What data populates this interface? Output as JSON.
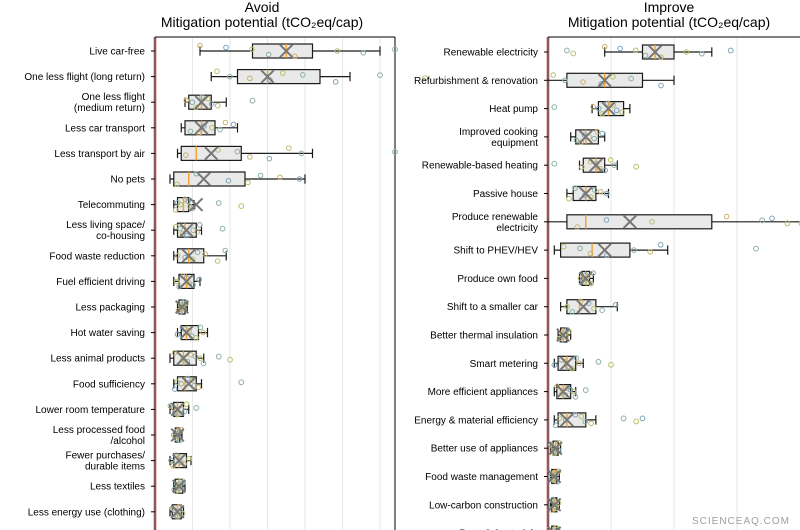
{
  "chart_data": [
    {
      "type": "boxplot",
      "title": "Avoid",
      "subtitle": "Mitigation potential (tCO₂eq/cap)",
      "categories": [
        [
          "Live car-free"
        ],
        [
          "One less flight (long return)"
        ],
        [
          "One less flight",
          "(medium return)"
        ],
        [
          "Less car transport"
        ],
        [
          "Less transport by air"
        ],
        [
          "No pets"
        ],
        [
          "Telecommuting"
        ],
        [
          "Less living space/",
          "co-housing"
        ],
        [
          "Food waste reduction"
        ],
        [
          "Fuel efficient driving"
        ],
        [
          "Less packaging"
        ],
        [
          "Hot water saving"
        ],
        [
          "Less animal products"
        ],
        [
          "Food sufficiency"
        ],
        [
          "Lower room temperature"
        ],
        [
          "Less processed food",
          "/alcohol"
        ],
        [
          "Fewer purchases/",
          "durable items"
        ],
        [
          "Less textiles"
        ],
        [
          "Less energy use (clothing)"
        ]
      ],
      "boxes": [
        {
          "wl": 0.6,
          "q1": 1.3,
          "med": 1.75,
          "q3": 2.1,
          "wh": 3.0,
          "mean": 1.75,
          "outliers": [
            3.2
          ]
        },
        {
          "wl": 0.75,
          "q1": 1.1,
          "med": 1.5,
          "q3": 2.2,
          "wh": 2.6,
          "mean": 1.5,
          "outliers": [
            3.0,
            3.6
          ]
        },
        {
          "wl": 0.4,
          "q1": 0.45,
          "med": 0.62,
          "q3": 0.75,
          "wh": 0.95,
          "mean": 0.62,
          "outliers": [
            1.3
          ]
        },
        {
          "wl": 0.35,
          "q1": 0.4,
          "med": 0.62,
          "q3": 0.8,
          "wh": 1.1,
          "mean": 0.62,
          "outliers": []
        },
        {
          "wl": 0.3,
          "q1": 0.35,
          "med": 0.55,
          "q3": 1.15,
          "wh": 2.1,
          "mean": 0.75,
          "outliers": [
            3.2
          ]
        },
        {
          "wl": 0.2,
          "q1": 0.25,
          "med": 0.45,
          "q3": 1.2,
          "wh": 2.0,
          "mean": 0.65,
          "outliers": []
        },
        {
          "wl": 0.25,
          "q1": 0.3,
          "med": 0.38,
          "q3": 0.45,
          "wh": 0.52,
          "mean": 0.55,
          "outliers": [
            0.85,
            1.15
          ]
        },
        {
          "wl": 0.25,
          "q1": 0.3,
          "med": 0.4,
          "q3": 0.55,
          "wh": 0.62,
          "mean": 0.42,
          "outliers": [
            0.9
          ]
        },
        {
          "wl": 0.25,
          "q1": 0.3,
          "med": 0.45,
          "q3": 0.65,
          "wh": 0.95,
          "mean": 0.45,
          "outliers": []
        },
        {
          "wl": 0.25,
          "q1": 0.32,
          "med": 0.42,
          "q3": 0.52,
          "wh": 0.6,
          "mean": 0.42,
          "outliers": []
        },
        {
          "wl": 0.3,
          "q1": 0.32,
          "med": 0.36,
          "q3": 0.4,
          "wh": 0.43,
          "mean": 0.36,
          "outliers": []
        },
        {
          "wl": 0.3,
          "q1": 0.35,
          "med": 0.42,
          "q3": 0.58,
          "wh": 0.7,
          "mean": 0.42,
          "outliers": []
        },
        {
          "wl": 0.2,
          "q1": 0.25,
          "med": 0.38,
          "q3": 0.55,
          "wh": 0.65,
          "mean": 0.38,
          "outliers": [
            0.85,
            1.0
          ]
        },
        {
          "wl": 0.25,
          "q1": 0.3,
          "med": 0.4,
          "q3": 0.55,
          "wh": 0.62,
          "mean": 0.45,
          "outliers": [
            1.15
          ]
        },
        {
          "wl": 0.2,
          "q1": 0.25,
          "med": 0.3,
          "q3": 0.38,
          "wh": 0.45,
          "mean": 0.3,
          "outliers": [
            0.55
          ]
        },
        {
          "wl": 0.25,
          "q1": 0.27,
          "med": 0.3,
          "q3": 0.33,
          "wh": 0.36,
          "mean": 0.3,
          "outliers": []
        },
        {
          "wl": 0.2,
          "q1": 0.25,
          "med": 0.32,
          "q3": 0.42,
          "wh": 0.48,
          "mean": 0.32,
          "outliers": []
        },
        {
          "wl": 0.25,
          "q1": 0.27,
          "med": 0.32,
          "q3": 0.37,
          "wh": 0.4,
          "mean": 0.32,
          "outliers": []
        },
        {
          "wl": 0.2,
          "q1": 0.23,
          "med": 0.3,
          "q3": 0.35,
          "wh": 0.38,
          "mean": 0.3,
          "outliers": []
        }
      ],
      "grid": true,
      "gridlines_every": 0.5
    },
    {
      "type": "boxplot",
      "title": "Improve",
      "subtitle": "Mitigation potential (tCO₂eq/cap)",
      "categories": [
        [
          "Renewable electricity"
        ],
        [
          "Refurbishment & renovation"
        ],
        [
          "Heat pump"
        ],
        [
          "Improved cooking",
          "equipment"
        ],
        [
          "Renewable-based heating"
        ],
        [
          "Passive house"
        ],
        [
          "Produce renewable",
          "electricity"
        ],
        [
          "Shift to PHEV/HEV"
        ],
        [
          "Produce own food"
        ],
        [
          "Shift to a smaller car"
        ],
        [
          "Better thermal insulation"
        ],
        [
          "Smart metering"
        ],
        [
          "More efficient appliances"
        ],
        [
          "Energy & material efficiency"
        ],
        [
          "Better use of appliances"
        ],
        [
          "Food waste management"
        ],
        [
          "Low-carbon construction"
        ],
        [
          "Recycle/materials"
        ]
      ],
      "boxes": [
        {
          "wl": 0.45,
          "q1": 0.75,
          "med": 0.85,
          "q3": 1.0,
          "wh": 1.3,
          "mean": 0.85,
          "outliers": [
            0.15,
            0.2,
            1.45
          ]
        },
        {
          "wl": 0.0,
          "q1": 0.15,
          "med": 0.45,
          "q3": 0.75,
          "wh": 1.0,
          "mean": 0.45,
          "outliers": []
        },
        {
          "wl": 0.35,
          "q1": 0.4,
          "med": 0.48,
          "q3": 0.6,
          "wh": 0.65,
          "mean": 0.48,
          "outliers": [
            0.05
          ]
        },
        {
          "wl": 0.18,
          "q1": 0.22,
          "med": 0.3,
          "q3": 0.4,
          "wh": 0.45,
          "mean": 0.3,
          "outliers": []
        },
        {
          "wl": 0.25,
          "q1": 0.28,
          "med": 0.38,
          "q3": 0.45,
          "wh": 0.55,
          "mean": 0.38,
          "outliers": [
            0.05,
            0.7
          ]
        },
        {
          "wl": 0.15,
          "q1": 0.2,
          "med": 0.3,
          "q3": 0.38,
          "wh": 0.48,
          "mean": 0.3,
          "outliers": []
        },
        {
          "wl": 0.0,
          "q1": 0.15,
          "med": 0.3,
          "q3": 1.3,
          "wh": 2.5,
          "mean": 0.65,
          "outliers": [
            1.7,
            1.9
          ]
        },
        {
          "wl": 0.05,
          "q1": 0.1,
          "med": 0.35,
          "q3": 0.65,
          "wh": 0.95,
          "mean": 0.45,
          "outliers": [
            1.65
          ]
        },
        {
          "wl": 0.25,
          "q1": 0.27,
          "med": 0.3,
          "q3": 0.33,
          "wh": 0.36,
          "mean": 0.3,
          "outliers": []
        },
        {
          "wl": 0.1,
          "q1": 0.15,
          "med": 0.25,
          "q3": 0.38,
          "wh": 0.55,
          "mean": 0.28,
          "outliers": []
        },
        {
          "wl": 0.08,
          "q1": 0.1,
          "med": 0.12,
          "q3": 0.15,
          "wh": 0.18,
          "mean": 0.12,
          "outliers": []
        },
        {
          "wl": 0.05,
          "q1": 0.08,
          "med": 0.15,
          "q3": 0.22,
          "wh": 0.28,
          "mean": 0.15,
          "outliers": [
            0.4,
            0.5
          ]
        },
        {
          "wl": 0.05,
          "q1": 0.07,
          "med": 0.12,
          "q3": 0.18,
          "wh": 0.22,
          "mean": 0.12,
          "outliers": [
            0.3
          ]
        },
        {
          "wl": 0.05,
          "q1": 0.08,
          "med": 0.15,
          "q3": 0.3,
          "wh": 0.38,
          "mean": 0.15,
          "outliers": [
            0.6,
            0.7,
            0.75
          ]
        },
        {
          "wl": 0.02,
          "q1": 0.04,
          "med": 0.06,
          "q3": 0.08,
          "wh": 0.1,
          "mean": 0.06,
          "outliers": []
        },
        {
          "wl": 0.02,
          "q1": 0.03,
          "med": 0.05,
          "q3": 0.07,
          "wh": 0.09,
          "mean": 0.05,
          "outliers": []
        },
        {
          "wl": 0.02,
          "q1": 0.03,
          "med": 0.05,
          "q3": 0.07,
          "wh": 0.09,
          "mean": 0.05,
          "outliers": []
        },
        {
          "wl": 0.02,
          "q1": 0.03,
          "med": 0.05,
          "q3": 0.07,
          "wh": 0.09,
          "mean": 0.05,
          "outliers": []
        }
      ],
      "grid": true,
      "gridlines_every": 0.5
    }
  ],
  "colors": {
    "box_fill": "#e9e9e9",
    "box_edge": "#1a1a1a",
    "median": "#f0a030",
    "mean_marker": "#777777",
    "point_colors": [
      "#c9b26a",
      "#8bb0a6",
      "#b8c06a",
      "#7fa3b8"
    ],
    "zero_band": "#f6c4c4",
    "grid": "#e6e6e6"
  },
  "watermark": "SCIENCEAQ.COM"
}
